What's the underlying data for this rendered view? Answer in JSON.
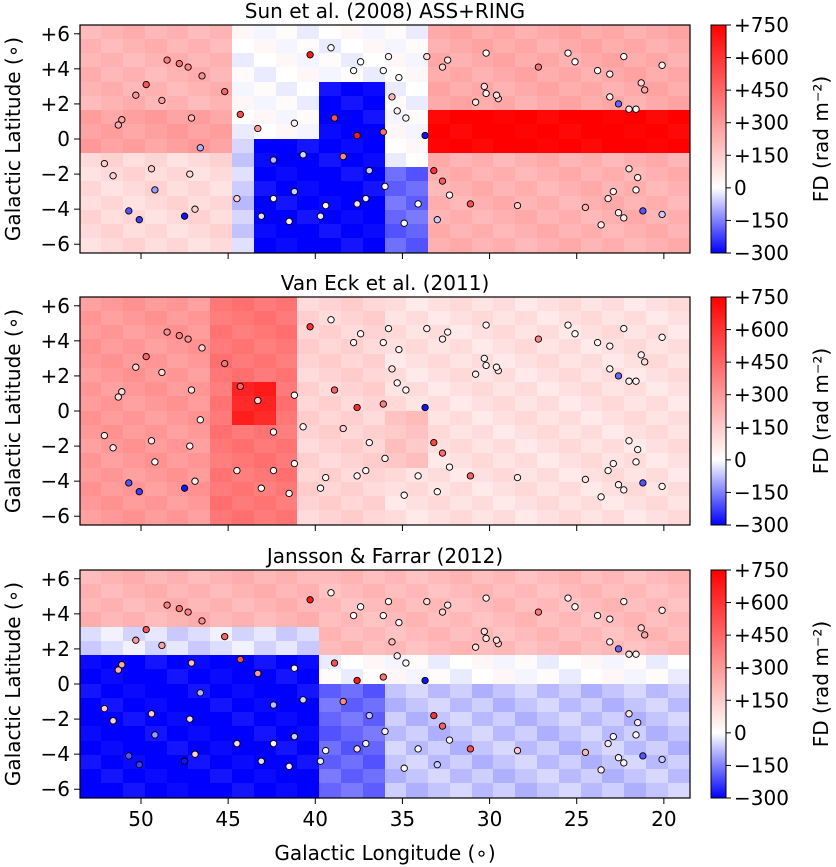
{
  "colors": {
    "cmap_low": "#0000ff",
    "cmap_mid": "#ffffff",
    "cmap_high": "#ff0000",
    "point_edge": "#000000"
  },
  "figure": {
    "xlabel": "Galactic Longitude (∘)",
    "ylabel": "Galactic Latitude (∘)",
    "colorbar_label": "FD (rad m⁻²)",
    "x_ticks": [
      50,
      45,
      40,
      35,
      30,
      25,
      20
    ],
    "y_ticks": [
      "+6",
      "+4",
      "+2",
      "0",
      "−2",
      "−4",
      "−6"
    ],
    "y_tick_values": [
      6,
      4,
      2,
      0,
      -2,
      -4,
      -6
    ],
    "cbar_ticks": [
      "+750",
      "+600",
      "+450",
      "+300",
      "+150",
      "0",
      "−150",
      "−300"
    ],
    "cbar_tick_values": [
      750,
      600,
      450,
      300,
      150,
      0,
      -150,
      -300
    ]
  },
  "chart_data": [
    {
      "type": "heatmap",
      "title": "Sun et al. (2008) ASS+RING",
      "xlabel": "",
      "ylabel": "Galactic Latitude (∘)",
      "xlim": [
        53.5,
        18.5
      ],
      "ylim": [
        -6.5,
        6.5
      ],
      "clim": [
        -300,
        750
      ],
      "colorbar_label": "FD (rad m⁻²)",
      "field": {
        "description": "background faraday depth map sampled by region (FD values in rad m^-2)",
        "regions": [
          {
            "lon": [
              53.5,
              45
            ],
            "lat": [
              2,
              6.5
            ],
            "fd": 220
          },
          {
            "lon": [
              53.5,
              45
            ],
            "lat": [
              -0.5,
              2
            ],
            "fd": 280
          },
          {
            "lon": [
              53.5,
              45
            ],
            "lat": [
              -6.5,
              -0.5
            ],
            "fd": 110
          },
          {
            "lon": [
              45,
              43
            ],
            "lat": [
              -6.5,
              0
            ],
            "fd": -60
          },
          {
            "lon": [
              43,
              40
            ],
            "lat": [
              -6.5,
              0
            ],
            "fd": -300
          },
          {
            "lon": [
              40,
              35.5
            ],
            "lat": [
              -6.5,
              3
            ],
            "fd": -300
          },
          {
            "lon": [
              36,
              33
            ],
            "lat": [
              -6.5,
              -2
            ],
            "fd": -180
          },
          {
            "lon": [
              33,
              18.5
            ],
            "lat": [
              -1,
              2
            ],
            "fd": 750
          },
          {
            "lon": [
              33,
              18.5
            ],
            "lat": [
              2,
              6.5
            ],
            "fd": 250
          },
          {
            "lon": [
              33,
              18.5
            ],
            "lat": [
              -6.5,
              -1
            ],
            "fd": 230
          }
        ]
      },
      "points": [
        {
          "lon": 48.5,
          "lat": 4.5,
          "fd": 380
        },
        {
          "lon": 47.8,
          "lat": 4.3,
          "fd": 420
        },
        {
          "lon": 47.3,
          "lat": 4.1,
          "fd": 360
        },
        {
          "lon": 46.5,
          "lat": 3.6,
          "fd": 330
        },
        {
          "lon": 49.7,
          "lat": 3.1,
          "fd": 500
        },
        {
          "lon": 50.3,
          "lat": 2.5,
          "fd": 300
        },
        {
          "lon": 48.8,
          "lat": 2.2,
          "fd": 280
        },
        {
          "lon": 45.2,
          "lat": 2.7,
          "fd": 460
        },
        {
          "lon": 44.3,
          "lat": 1.4,
          "fd": 520
        },
        {
          "lon": 51.1,
          "lat": 1.1,
          "fd": 260
        },
        {
          "lon": 51.3,
          "lat": 0.8,
          "fd": 240
        },
        {
          "lon": 47.1,
          "lat": 1.2,
          "fd": 200
        },
        {
          "lon": 52.1,
          "lat": -1.4,
          "fd": 150
        },
        {
          "lon": 51.6,
          "lat": -2.1,
          "fd": 130
        },
        {
          "lon": 49.4,
          "lat": -1.7,
          "fd": 160
        },
        {
          "lon": 47.2,
          "lat": -2.0,
          "fd": 110
        },
        {
          "lon": 46.6,
          "lat": -0.5,
          "fd": -90
        },
        {
          "lon": 49.2,
          "lat": -2.9,
          "fd": -120
        },
        {
          "lon": 50.7,
          "lat": -4.1,
          "fd": -200
        },
        {
          "lon": 50.1,
          "lat": -4.6,
          "fd": -230
        },
        {
          "lon": 47.5,
          "lat": -4.4,
          "fd": -280
        },
        {
          "lon": 46.9,
          "lat": -4.0,
          "fd": 140
        },
        {
          "lon": 44.5,
          "lat": -3.4,
          "fd": 120
        },
        {
          "lon": 43.1,
          "lat": -4.4,
          "fd": -40
        },
        {
          "lon": 42.4,
          "lat": -3.4,
          "fd": 40
        },
        {
          "lon": 41.2,
          "lat": -3.0,
          "fd": -60
        },
        {
          "lon": 41.5,
          "lat": -4.7,
          "fd": 60
        },
        {
          "lon": 39.7,
          "lat": -4.4,
          "fd": -30
        },
        {
          "lon": 39.4,
          "lat": -3.8,
          "fd": 20
        },
        {
          "lon": 37.6,
          "lat": -3.7,
          "fd": 90
        },
        {
          "lon": 37.1,
          "lat": -3.4,
          "fd": -20
        },
        {
          "lon": 38.9,
          "lat": 1.2,
          "fd": 520
        },
        {
          "lon": 37.6,
          "lat": 0.2,
          "fd": 680
        },
        {
          "lon": 38.4,
          "lat": -1.0,
          "fd": 350
        },
        {
          "lon": 36.9,
          "lat": -1.8,
          "fd": -70
        },
        {
          "lon": 36.1,
          "lat": 0.4,
          "fd": 420
        },
        {
          "lon": 34.8,
          "lat": 1.2,
          "fd": 30
        },
        {
          "lon": 33.7,
          "lat": 0.2,
          "fd": -280
        },
        {
          "lon": 33.2,
          "lat": -1.8,
          "fd": 600
        },
        {
          "lon": 32.7,
          "lat": -2.4,
          "fd": 480
        },
        {
          "lon": 32.3,
          "lat": -3.2,
          "fd": 20
        },
        {
          "lon": 34.1,
          "lat": -3.7,
          "fd": 0
        },
        {
          "lon": 34.9,
          "lat": -4.8,
          "fd": 10
        },
        {
          "lon": 33.0,
          "lat": -4.6,
          "fd": -60
        },
        {
          "lon": 36.0,
          "lat": -2.7,
          "fd": 40
        },
        {
          "lon": 31.1,
          "lat": -3.7,
          "fd": 520
        },
        {
          "lon": 28.4,
          "lat": -3.8,
          "fd": 150
        },
        {
          "lon": 35.8,
          "lat": 4.7,
          "fd": 30
        },
        {
          "lon": 37.4,
          "lat": 4.4,
          "fd": 0
        },
        {
          "lon": 36.1,
          "lat": 3.9,
          "fd": 10
        },
        {
          "lon": 35.2,
          "lat": 3.5,
          "fd": 20
        },
        {
          "lon": 35.6,
          "lat": 2.4,
          "fd": 200
        },
        {
          "lon": 35.3,
          "lat": 1.6,
          "fd": 40
        },
        {
          "lon": 40.3,
          "lat": 4.8,
          "fd": 680
        },
        {
          "lon": 39.1,
          "lat": 5.2,
          "fd": 20
        },
        {
          "lon": 37.8,
          "lat": 3.9,
          "fd": 10
        },
        {
          "lon": 33.6,
          "lat": 4.7,
          "fd": 100
        },
        {
          "lon": 32.4,
          "lat": 4.5,
          "fd": 70
        },
        {
          "lon": 32.7,
          "lat": 4.1,
          "fd": 130
        },
        {
          "lon": 30.2,
          "lat": 4.9,
          "fd": 20
        },
        {
          "lon": 30.3,
          "lat": 3.0,
          "fd": 100
        },
        {
          "lon": 29.5,
          "lat": 2.3,
          "fd": 150
        },
        {
          "lon": 27.2,
          "lat": 4.1,
          "fd": 400
        },
        {
          "lon": 25.5,
          "lat": 4.9,
          "fd": 20
        },
        {
          "lon": 25.1,
          "lat": 4.4,
          "fd": 10
        },
        {
          "lon": 23.8,
          "lat": 3.9,
          "fd": 20
        },
        {
          "lon": 23.1,
          "lat": 3.7,
          "fd": 40
        },
        {
          "lon": 22.3,
          "lat": 4.7,
          "fd": 20
        },
        {
          "lon": 21.3,
          "lat": 3.2,
          "fd": 120
        },
        {
          "lon": 21.1,
          "lat": 2.8,
          "fd": 260
        },
        {
          "lon": 20.1,
          "lat": 4.2,
          "fd": 40
        },
        {
          "lon": 23.1,
          "lat": 2.4,
          "fd": 40
        },
        {
          "lon": 22.6,
          "lat": 2.0,
          "fd": -180
        },
        {
          "lon": 22.0,
          "lat": 1.7,
          "fd": 70
        },
        {
          "lon": 21.6,
          "lat": 1.7,
          "fd": 30
        },
        {
          "lon": 30.8,
          "lat": 2.1,
          "fd": 80
        },
        {
          "lon": 30.2,
          "lat": 2.6,
          "fd": 60
        },
        {
          "lon": 29.6,
          "lat": 2.5,
          "fd": 90
        },
        {
          "lon": 24.5,
          "lat": -3.9,
          "fd": 220
        },
        {
          "lon": 23.2,
          "lat": -3.4,
          "fd": 60
        },
        {
          "lon": 22.9,
          "lat": -3.0,
          "fd": 30
        },
        {
          "lon": 22.6,
          "lat": -4.2,
          "fd": 20
        },
        {
          "lon": 22.3,
          "lat": -4.5,
          "fd": 40
        },
        {
          "lon": 21.6,
          "lat": -2.9,
          "fd": 30
        },
        {
          "lon": 21.2,
          "lat": -4.1,
          "fd": -200
        },
        {
          "lon": 20.1,
          "lat": -4.3,
          "fd": -60
        },
        {
          "lon": 22.0,
          "lat": -1.7,
          "fd": 80
        },
        {
          "lon": 21.5,
          "lat": -2.2,
          "fd": 60
        },
        {
          "lon": 23.6,
          "lat": -4.9,
          "fd": 40
        },
        {
          "lon": 41.2,
          "lat": 0.9,
          "fd": 40
        },
        {
          "lon": 40.7,
          "lat": -0.9,
          "fd": -50
        },
        {
          "lon": 42.4,
          "lat": -1.2,
          "fd": -80
        },
        {
          "lon": 43.3,
          "lat": 0.6,
          "fd": 300
        }
      ]
    },
    {
      "type": "heatmap",
      "title": "Van Eck et al. (2011)",
      "xlabel": "",
      "ylabel": "Galactic Latitude (∘)",
      "xlim": [
        53.5,
        18.5
      ],
      "ylim": [
        -6.5,
        6.5
      ],
      "clim": [
        -300,
        750
      ],
      "colorbar_label": "FD (rad m⁻²)",
      "field": {
        "description": "background faraday depth map sampled by region (FD values in rad m^-2)",
        "regions": [
          {
            "lon": [
              53.5,
              46
            ],
            "lat": [
              -6.5,
              6.5
            ],
            "fd": 300
          },
          {
            "lon": [
              46,
              41
            ],
            "lat": [
              -6.5,
              6.5
            ],
            "fd": 400
          },
          {
            "lon": [
              45,
              42
            ],
            "lat": [
              -0.5,
              2
            ],
            "fd": 650
          },
          {
            "lon": [
              41,
              36
            ],
            "lat": [
              -6.5,
              6.5
            ],
            "fd": 130
          },
          {
            "lon": [
              36,
              18.5
            ],
            "lat": [
              -6.5,
              6.5
            ],
            "fd": 90
          },
          {
            "lon": [
              36,
              33
            ],
            "lat": [
              -3,
              0
            ],
            "fd": 180
          }
        ]
      },
      "points": "same source positions as panel 1"
    },
    {
      "type": "heatmap",
      "title": "Jansson & Farrar (2012)",
      "xlabel": "Galactic Longitude (∘)",
      "ylabel": "Galactic Latitude (∘)",
      "xlim": [
        53.5,
        18.5
      ],
      "ylim": [
        -6.5,
        6.5
      ],
      "clim": [
        -300,
        750
      ],
      "colorbar_label": "FD (rad m⁻²)",
      "field": {
        "description": "background faraday depth map sampled by region (FD values in rad m^-2)",
        "regions": [
          {
            "lon": [
              53.5,
              40
            ],
            "lat": [
              3,
              6.5
            ],
            "fd": 220
          },
          {
            "lon": [
              53.5,
              40
            ],
            "lat": [
              2,
              3
            ],
            "fd": -40
          },
          {
            "lon": [
              53.5,
              40
            ],
            "lat": [
              -6.5,
              2
            ],
            "fd": -300
          },
          {
            "lon": [
              40,
              36
            ],
            "lat": [
              -6.5,
              0
            ],
            "fd": -180
          },
          {
            "lon": [
              40,
              18.5
            ],
            "lat": [
              2,
              6.5
            ],
            "fd": 200
          },
          {
            "lon": [
              36,
              18.5
            ],
            "lat": [
              -6.5,
              0
            ],
            "fd": -70
          }
        ]
      },
      "points": "same source positions as panel 1"
    }
  ]
}
